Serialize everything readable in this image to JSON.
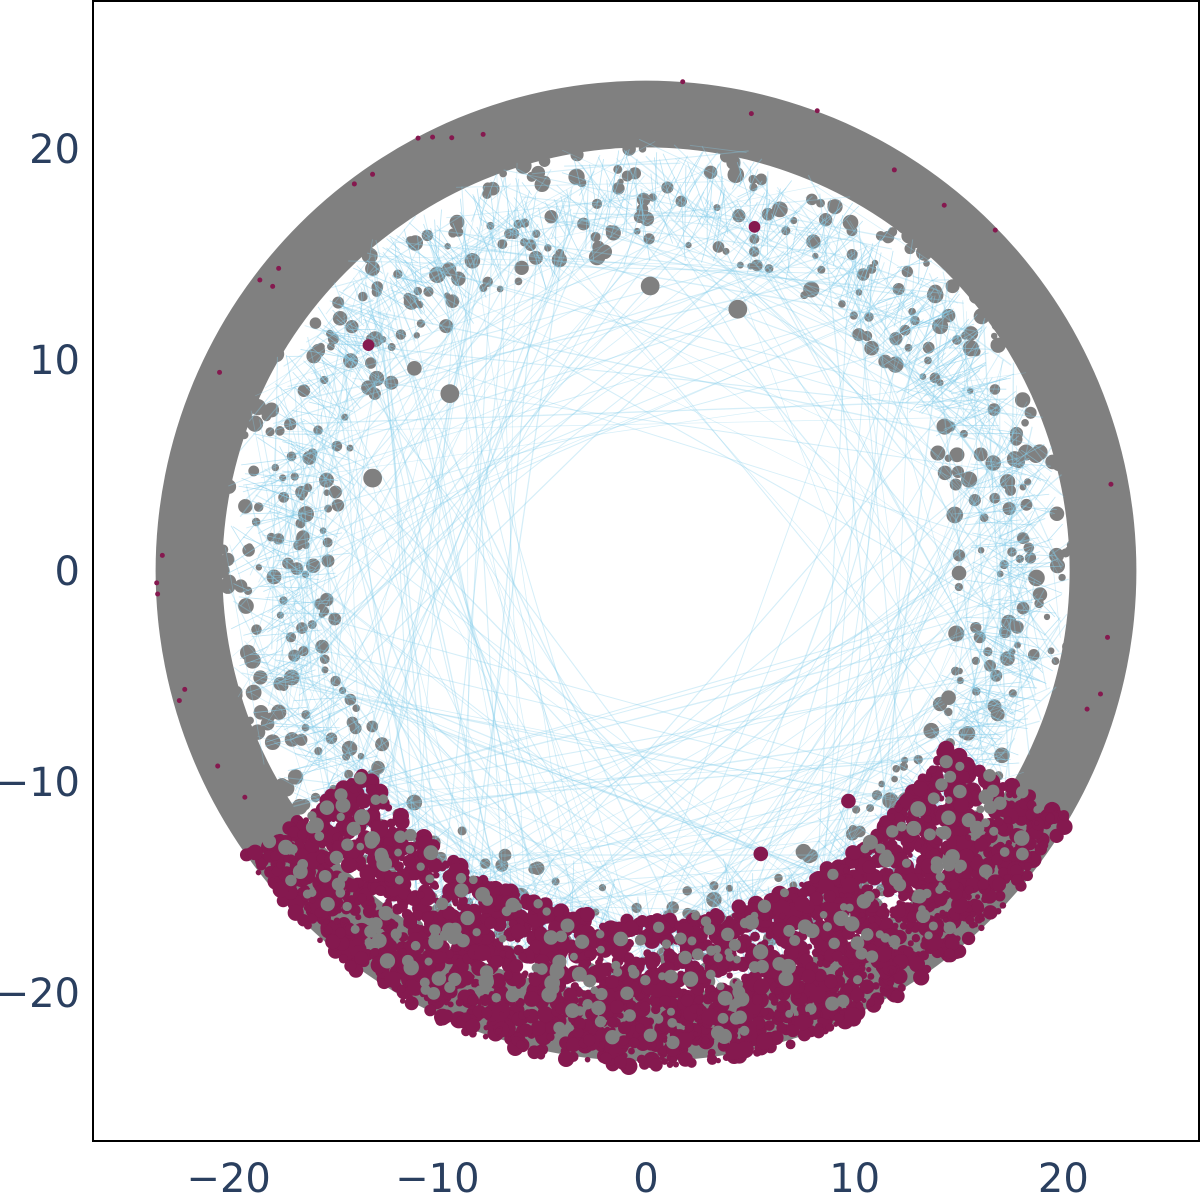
{
  "chart_data": {
    "type": "scatter",
    "title": "",
    "xlabel": "",
    "ylabel": "",
    "xlim": [
      -26.5,
      26.5
    ],
    "ylim": [
      -27,
      27
    ],
    "grid": false,
    "legend": "none",
    "x_ticks": [
      {
        "value": -20,
        "label": "−20"
      },
      {
        "value": -10,
        "label": "−10"
      },
      {
        "value": 0,
        "label": "0"
      },
      {
        "value": 10,
        "label": "10"
      },
      {
        "value": 20,
        "label": "20"
      }
    ],
    "y_ticks": [
      {
        "value": 20,
        "label": "20"
      },
      {
        "value": 10,
        "label": "10"
      },
      {
        "value": 0,
        "label": "0"
      },
      {
        "value": -10,
        "label": "−10"
      },
      {
        "value": -20,
        "label": "−20"
      }
    ],
    "disk_radius": 23.5,
    "colors": {
      "gray_nodes": "#808080",
      "highlight_nodes": "#85194f",
      "edges": "#87ceeb",
      "frame": "#000000",
      "tick_text": "#2a3f5f"
    },
    "highlight_sector_deg": [
      215,
      330
    ],
    "node_layers": [
      {
        "name": "gray",
        "color": "#808080"
      },
      {
        "name": "highlight",
        "color": "#85194f"
      },
      {
        "name": "edges",
        "color": "#87ceeb"
      }
    ],
    "labeled_points": [
      {
        "x": -9.4,
        "y": 8.4,
        "size": "large",
        "color": "#808080"
      },
      {
        "x": 4.4,
        "y": 12.4,
        "size": "large",
        "color": "#808080"
      },
      {
        "x": 0.2,
        "y": 13.5,
        "size": "large",
        "color": "#808080"
      },
      {
        "x": -13.1,
        "y": 4.4,
        "size": "large",
        "color": "#808080"
      },
      {
        "x": -11.1,
        "y": 9.6,
        "size": "medium",
        "color": "#808080"
      },
      {
        "x": 15.0,
        "y": -0.1,
        "size": "medium",
        "color": "#808080"
      },
      {
        "x": 14.5,
        "y": -6.0,
        "size": "medium",
        "color": "#808080"
      },
      {
        "x": 9.7,
        "y": -10.9,
        "size": "medium",
        "color": "#85194f"
      },
      {
        "x": 5.5,
        "y": -13.4,
        "size": "medium",
        "color": "#85194f"
      },
      {
        "x": 5.2,
        "y": 16.3,
        "size": "small",
        "color": "#85194f"
      },
      {
        "x": -13.3,
        "y": 10.7,
        "size": "small",
        "color": "#85194f"
      }
    ]
  }
}
